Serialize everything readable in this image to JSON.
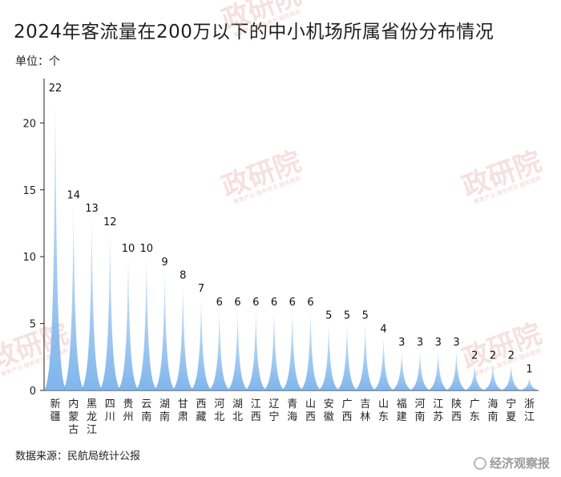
{
  "title": "2024年客流量在200万以下的中小机场所属省份分布情况",
  "unit_label": "单位：个",
  "source": "数据来源：民航局统计公报",
  "brand": "经济观察报",
  "watermark": {
    "main": "政研院",
    "sub": "聚焦产业·服务地方·服务政府"
  },
  "colors": {
    "fill": "#7ab4ec",
    "fill_light": "#cfe4f8",
    "axis": "#222222",
    "watermark": "#e8a7a7"
  },
  "chart_data": {
    "type": "bar",
    "title": "2024年客流量在200万以下的中小机场所属省份分布情况",
    "ylabel": "单位：个",
    "xlabel": "",
    "ylim": [
      0,
      22
    ],
    "yticks": [
      0,
      5,
      10,
      15,
      20
    ],
    "grid": false,
    "categories": [
      "新疆",
      "内蒙古",
      "黑龙江",
      "四川",
      "贵州",
      "云南",
      "湖南",
      "甘肃",
      "西藏",
      "河北",
      "湖北",
      "江西",
      "辽宁",
      "青海",
      "山西",
      "安徽",
      "广西",
      "吉林",
      "山东",
      "福建",
      "河南",
      "江苏",
      "陕西",
      "广东",
      "海南",
      "宁夏",
      "浙江"
    ],
    "values": [
      22,
      14,
      13,
      12,
      10,
      10,
      9,
      8,
      7,
      6,
      6,
      6,
      6,
      6,
      6,
      5,
      5,
      5,
      4,
      3,
      3,
      3,
      3,
      2,
      2,
      2,
      1
    ]
  }
}
